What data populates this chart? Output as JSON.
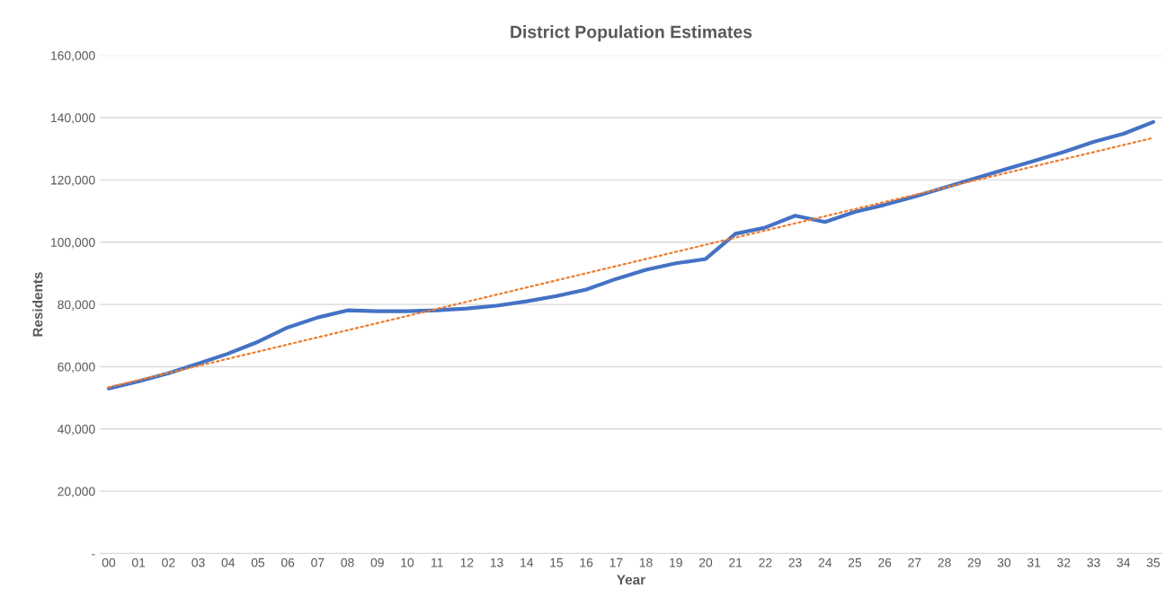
{
  "chart_data": {
    "type": "line",
    "title": "District Population Estimates",
    "xlabel": "Year",
    "ylabel": "Residents",
    "categories": [
      "00",
      "01",
      "02",
      "03",
      "04",
      "05",
      "06",
      "07",
      "08",
      "09",
      "10",
      "11",
      "12",
      "13",
      "14",
      "15",
      "16",
      "17",
      "18",
      "19",
      "20",
      "21",
      "22",
      "23",
      "24",
      "25",
      "26",
      "27",
      "28",
      "29",
      "30",
      "31",
      "32",
      "33",
      "34",
      "35"
    ],
    "series": [
      {
        "color": "#4472c4",
        "line_style": "solid",
        "values": [
          53000,
          55300,
          57900,
          61000,
          64200,
          68000,
          72600,
          75800,
          78100,
          77800,
          77800,
          78100,
          78700,
          79600,
          81000,
          82700,
          84800,
          88200,
          91100,
          93200,
          94600,
          102700,
          104700,
          108500,
          106500,
          109700,
          112000,
          114600,
          117500,
          120400,
          123300,
          126100,
          129000,
          132200,
          134800,
          138600
        ]
      },
      {
        "type": "line",
        "color": "#ed7d31",
        "line_style": "dotted",
        "x": [
          "00",
          "35"
        ],
        "values": [
          53400,
          133500
        ]
      }
    ],
    "ylim": [
      0,
      160000
    ],
    "yticks": [
      {
        "value": 0,
        "label": "-"
      },
      {
        "value": 20000,
        "label": "20,000"
      },
      {
        "value": 40000,
        "label": "40,000"
      },
      {
        "value": 60000,
        "label": "60,000"
      },
      {
        "value": 80000,
        "label": "80,000"
      },
      {
        "value": 100000,
        "label": "100,000"
      },
      {
        "value": 120000,
        "label": "120,000"
      },
      {
        "value": 140000,
        "label": "140,000"
      },
      {
        "value": 160000,
        "label": "160,000"
      }
    ],
    "grid": "y",
    "marker": "none",
    "legend": false
  }
}
